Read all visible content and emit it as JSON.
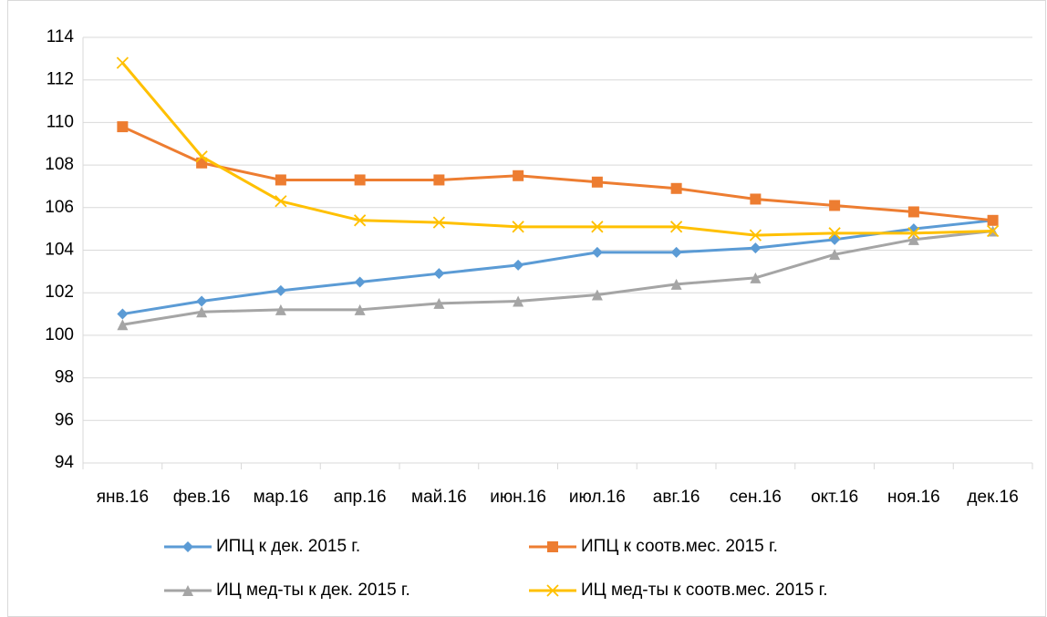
{
  "chart_data": {
    "type": "line",
    "categories": [
      "янв.16",
      "фев.16",
      "мар.16",
      "апр.16",
      "май.16",
      "июн.16",
      "июл.16",
      "авг.16",
      "сен.16",
      "окт.16",
      "ноя.16",
      "дек.16"
    ],
    "series": [
      {
        "name": "ИПЦ к дек. 2015 г.",
        "color": "#5b9bd5",
        "marker": "diamond",
        "values": [
          101.0,
          101.6,
          102.1,
          102.5,
          102.9,
          103.3,
          103.9,
          103.9,
          104.1,
          104.5,
          105.0,
          105.4
        ]
      },
      {
        "name": "ИПЦ к соотв.мес. 2015 г.",
        "color": "#ed7d31",
        "marker": "square",
        "values": [
          109.8,
          108.1,
          107.3,
          107.3,
          107.3,
          107.5,
          107.2,
          106.9,
          106.4,
          106.1,
          105.8,
          105.4
        ]
      },
      {
        "name": "ИЦ мед-ты к дек. 2015 г.",
        "color": "#a5a5a5",
        "marker": "triangle",
        "values": [
          100.5,
          101.1,
          101.2,
          101.2,
          101.5,
          101.6,
          101.9,
          102.4,
          102.7,
          103.8,
          104.5,
          104.9
        ]
      },
      {
        "name": "ИЦ мед-ты к соотв.мес. 2015 г.",
        "color": "#ffc000",
        "marker": "x",
        "values": [
          112.8,
          108.4,
          106.3,
          105.4,
          105.3,
          105.1,
          105.1,
          105.1,
          104.7,
          104.8,
          104.8,
          104.9
        ]
      }
    ],
    "ylim": [
      94,
      114
    ],
    "yticks": [
      94,
      96,
      98,
      100,
      102,
      104,
      106,
      108,
      110,
      112,
      114
    ],
    "grid": true,
    "legend": "bottom"
  }
}
